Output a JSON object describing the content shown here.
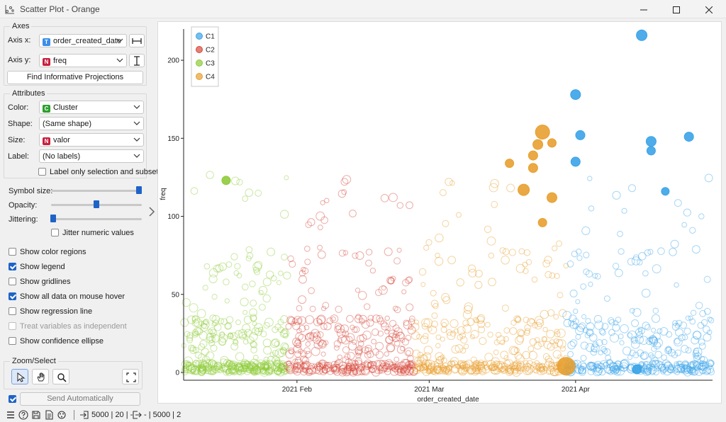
{
  "window": {
    "title": "Scatter Plot - Orange",
    "minimize_icon": "minimize-icon",
    "maximize_icon": "maximize-icon",
    "close_icon": "close-icon"
  },
  "axes_group": {
    "title": "Axes",
    "axis_x_label": "Axis x:",
    "axis_x_value": "order_created_date",
    "axis_x_type": "T",
    "axis_y_label": "Axis y:",
    "axis_y_value": "freq",
    "axis_y_type": "N",
    "find_button": "Find Informative Projections"
  },
  "attributes_group": {
    "title": "Attributes",
    "color_label": "Color:",
    "color_value": "Cluster",
    "color_type": "C",
    "shape_label": "Shape:",
    "shape_value": "(Same shape)",
    "size_label": "Size:",
    "size_value": "valor",
    "size_type": "N",
    "label_label": "Label:",
    "label_value": "(No labels)",
    "label_only_selection": "Label only selection and subset",
    "label_only_selection_checked": false
  },
  "sliders": {
    "symbol_size_label": "Symbol size:",
    "symbol_size_level": 1.0,
    "opacity_label": "Opacity:",
    "opacity_level": 0.5,
    "jittering_label": "Jittering:",
    "jittering_level": 0.0,
    "jitter_numeric": "Jitter numeric values",
    "jitter_numeric_checked": false
  },
  "options": [
    {
      "label": "Show color regions",
      "checked": false,
      "disabled": false
    },
    {
      "label": "Show legend",
      "checked": true,
      "disabled": false
    },
    {
      "label": "Show gridlines",
      "checked": false,
      "disabled": false
    },
    {
      "label": "Show all data on mouse hover",
      "checked": true,
      "disabled": false
    },
    {
      "label": "Show regression line",
      "checked": false,
      "disabled": false
    },
    {
      "label": "Treat variables as independent",
      "checked": false,
      "disabled": true
    },
    {
      "label": "Show confidence ellipse",
      "checked": false,
      "disabled": false
    }
  ],
  "zoom_group": {
    "title": "Zoom/Select",
    "tools": [
      "select-pointer-icon",
      "pan-hand-icon",
      "zoom-magnifier-icon",
      "reset-zoom-icon"
    ]
  },
  "send": {
    "label": "Send Automatically",
    "checked": true
  },
  "statusbar": {
    "input_summary": "5000 | 20 | -",
    "output_summary": "- | 5000 | 2"
  },
  "colors": {
    "C1": "#3ba3e8",
    "C2": "#d64a3c",
    "C3": "#8fcb3a",
    "C4": "#e8a030",
    "accent": "#1e63c8"
  },
  "chart_data": {
    "type": "scatter",
    "xlabel": "order_created_date",
    "ylabel": "freq",
    "x_ticks": [
      "2021 Feb",
      "2021 Mar",
      "2021 Apr"
    ],
    "x_tick_dates": [
      "2021-02-01",
      "2021-03-01",
      "2021-04-01"
    ],
    "x_range": [
      "2021-01-08",
      "2021-04-30"
    ],
    "y_ticks": [
      0,
      50,
      100,
      150,
      200
    ],
    "ylim": [
      -5,
      220
    ],
    "legend": {
      "placement": "top-left",
      "entries": [
        "C1",
        "C2",
        "C3",
        "C4"
      ]
    },
    "series": [
      {
        "name": "C3",
        "x_range": [
          "2021-01-08",
          "2021-01-30"
        ],
        "highlighted": [
          {
            "x": "2021-01-17",
            "y": 123,
            "size": 1.2
          }
        ]
      },
      {
        "name": "C2",
        "x_range": [
          "2021-01-30",
          "2021-02-26"
        ],
        "highlighted": []
      },
      {
        "name": "C4",
        "x_range": [
          "2021-02-26",
          "2021-03-30"
        ],
        "highlighted": [
          {
            "x": "2021-03-18",
            "y": 134,
            "size": 1.2
          },
          {
            "x": "2021-03-21",
            "y": 117,
            "size": 1.6
          },
          {
            "x": "2021-03-23",
            "y": 139,
            "size": 1.3
          },
          {
            "x": "2021-03-23",
            "y": 131,
            "size": 1.3
          },
          {
            "x": "2021-03-24",
            "y": 146,
            "size": 1.4
          },
          {
            "x": "2021-03-25",
            "y": 154,
            "size": 2.0
          },
          {
            "x": "2021-03-25",
            "y": 96,
            "size": 1.2
          },
          {
            "x": "2021-03-27",
            "y": 112,
            "size": 1.4
          },
          {
            "x": "2021-03-27",
            "y": 147,
            "size": 1.2
          },
          {
            "x": "2021-03-30",
            "y": 4,
            "size": 2.5
          }
        ]
      },
      {
        "name": "C1",
        "x_range": [
          "2021-03-30",
          "2021-04-30"
        ],
        "highlighted": [
          {
            "x": "2021-04-01",
            "y": 178,
            "size": 1.4
          },
          {
            "x": "2021-04-01",
            "y": 135,
            "size": 1.3
          },
          {
            "x": "2021-04-02",
            "y": 152,
            "size": 1.3
          },
          {
            "x": "2021-04-14",
            "y": 2,
            "size": 1.3
          },
          {
            "x": "2021-04-15",
            "y": 216,
            "size": 1.5
          },
          {
            "x": "2021-04-17",
            "y": 148,
            "size": 1.4
          },
          {
            "x": "2021-04-17",
            "y": 142,
            "size": 1.2
          },
          {
            "x": "2021-04-20",
            "y": 116,
            "size": 1.1
          },
          {
            "x": "2021-04-25",
            "y": 151,
            "size": 1.3
          }
        ]
      }
    ]
  }
}
